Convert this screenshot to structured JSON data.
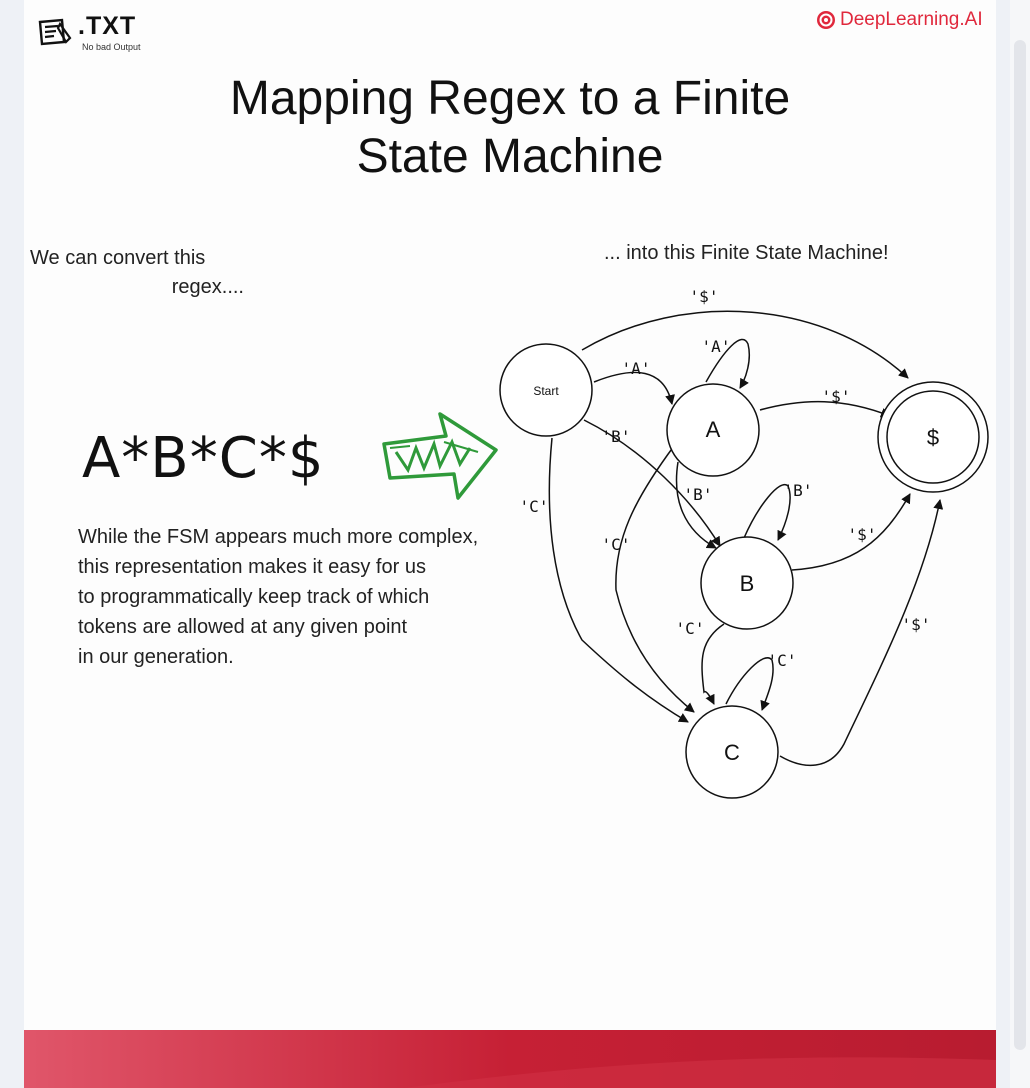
{
  "logos": {
    "txt_main": ".TXT",
    "txt_sub": "No bad Output",
    "dl_text": "DeepLearning.AI"
  },
  "title": {
    "line1": "Mapping Regex to a Finite",
    "line2": "State Machine"
  },
  "left_caption": {
    "line1": "We can convert this",
    "line2": "regex...."
  },
  "right_caption": "... into this Finite State Machine!",
  "regex": "A*B*C*$",
  "explanation": [
    "While the FSM appears much more complex,",
    "this representation makes it easy for us",
    "to programmatically keep track of which",
    "tokens are allowed at any given point",
    "in our generation."
  ],
  "fsm": {
    "nodes": {
      "start": "Start",
      "a": "A",
      "b": "B",
      "c": "C",
      "end": "$"
    },
    "edges": {
      "start_end": "'$'",
      "a_loop": "'A'",
      "start_a": "'A'",
      "a_end": "'$'",
      "start_b": "'B'",
      "a_b": "'B'",
      "b_loop": "'B'",
      "start_c": "'C'",
      "a_c": "'C'",
      "b_end": "'$'",
      "b_c": "'C'",
      "c_loop": "'C'",
      "c_end": "'$'"
    }
  },
  "colors": {
    "brand_red": "#e0283c",
    "arrow_green": "#2f9a3a",
    "footer_red": "#c62035"
  }
}
